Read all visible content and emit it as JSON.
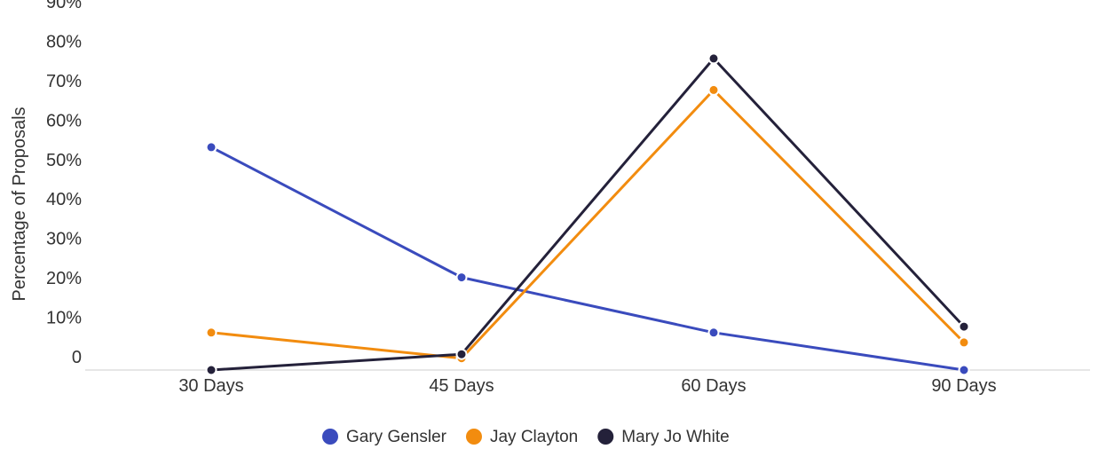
{
  "chart_data": {
    "type": "line",
    "title": "",
    "xlabel": "",
    "ylabel": "Percentage of Proposals",
    "categories": [
      "30 Days",
      "45 Days",
      "60 Days",
      "90 Days"
    ],
    "y_ticks": [
      "0",
      "10%",
      "20%",
      "30%",
      "40%",
      "50%",
      "60%",
      "70%",
      "80%",
      "90%"
    ],
    "ylim": [
      0,
      90
    ],
    "grid": false,
    "legend_position": "bottom",
    "series": [
      {
        "name": "Gary Gensler",
        "color": "#3a4bbd",
        "values": [
          56.5,
          23.5,
          9.5,
          0
        ]
      },
      {
        "name": "Jay Clayton",
        "color": "#f28c0f",
        "values": [
          9.5,
          3.0,
          71.0,
          7.0
        ]
      },
      {
        "name": "Mary Jo White",
        "color": "#24213a",
        "values": [
          0,
          4.0,
          79.0,
          11.0
        ]
      }
    ]
  }
}
